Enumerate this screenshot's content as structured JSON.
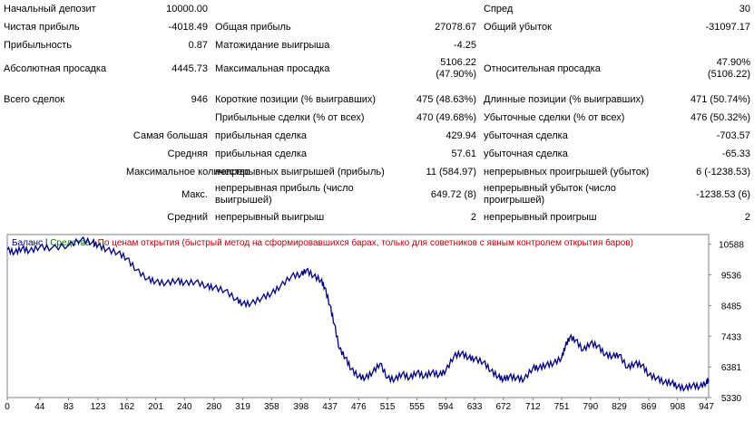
{
  "report": {
    "rows": [
      {
        "h": 20,
        "cells": [
          {
            "t": "Начальный депозит"
          },
          {
            "t": "10000.00",
            "num": true
          },
          {
            "t": ""
          },
          {
            "t": "",
            "num": true
          },
          {
            "t": "Спред"
          },
          {
            "t": "30",
            "num": true
          }
        ]
      },
      {
        "h": 20,
        "cells": [
          {
            "t": "Чистая прибыль"
          },
          {
            "t": "-4018.49",
            "num": true
          },
          {
            "t": "Общая прибыль"
          },
          {
            "t": "27078.67",
            "num": true
          },
          {
            "t": "Общий убыток"
          },
          {
            "t": "-31097.17",
            "num": true
          }
        ]
      },
      {
        "h": 20,
        "cells": [
          {
            "t": "Прибыльность"
          },
          {
            "t": "0.87",
            "num": true
          },
          {
            "t": "Матожидание выигрыша"
          },
          {
            "t": "-4.25",
            "num": true
          },
          {
            "t": ""
          },
          {
            "t": "",
            "num": true
          }
        ]
      },
      {
        "h": 32,
        "cells": [
          {
            "t": "Абсолютная просадка"
          },
          {
            "t": "4445.73",
            "num": true
          },
          {
            "t": "Максимальная просадка"
          },
          {
            "t": "5106.22\n(47.90%)",
            "num": true
          },
          {
            "t": "Относительная просадка"
          },
          {
            "t": "47.90%\n(5106.22)",
            "num": true
          }
        ]
      },
      {
        "h": 8,
        "cells": [
          {
            "t": ""
          },
          {
            "t": "",
            "num": true
          },
          {
            "t": ""
          },
          {
            "t": "",
            "num": true
          },
          {
            "t": ""
          },
          {
            "t": "",
            "num": true
          }
        ]
      },
      {
        "h": 20,
        "cells": [
          {
            "t": "Всего сделок"
          },
          {
            "t": "946",
            "num": true
          },
          {
            "t": "Короткие позиции (% выигравших)"
          },
          {
            "t": "475 (48.63%)",
            "num": true
          },
          {
            "t": "Длинные позиции (% выигравших)"
          },
          {
            "t": "471 (50.74%)",
            "num": true
          }
        ]
      },
      {
        "h": 20,
        "cells": [
          {
            "t": ""
          },
          {
            "t": "",
            "num": true
          },
          {
            "t": "Прибыльные сделки (% от всех)"
          },
          {
            "t": "470 (49.68%)",
            "num": true
          },
          {
            "t": "Убыточные сделки (% от всех)"
          },
          {
            "t": "476 (50.32%)",
            "num": true
          }
        ]
      },
      {
        "h": 20,
        "cells": [
          {
            "t": ""
          },
          {
            "t": "Самая большая",
            "num": true
          },
          {
            "t": "прибыльная сделка"
          },
          {
            "t": "429.94",
            "num": true
          },
          {
            "t": "убыточная сделка"
          },
          {
            "t": "-703.57",
            "num": true
          }
        ]
      },
      {
        "h": 20,
        "cells": [
          {
            "t": ""
          },
          {
            "t": "Средняя",
            "num": true
          },
          {
            "t": "прибыльная сделка"
          },
          {
            "t": "57.61",
            "num": true
          },
          {
            "t": "убыточная сделка"
          },
          {
            "t": "-65.33",
            "num": true
          }
        ]
      },
      {
        "h": 20,
        "cells": [
          {
            "t": ""
          },
          {
            "t": "Максимальное количество",
            "num": true
          },
          {
            "t": "непрерывных выигрышей (прибыль)"
          },
          {
            "t": "11 (584.97)",
            "num": true
          },
          {
            "t": "непрерывных проигрышей (убыток)"
          },
          {
            "t": "6 (-1238.53)",
            "num": true
          }
        ]
      },
      {
        "h": 30,
        "cells": [
          {
            "t": ""
          },
          {
            "t": "Макс.",
            "num": true
          },
          {
            "t": "непрерывная прибыль (число\nвыигрышей)"
          },
          {
            "t": "649.72 (8)",
            "num": true
          },
          {
            "t": "непрерывный убыток (число\nпроигрышей)"
          },
          {
            "t": "-1238.53 (6)",
            "num": true
          }
        ]
      },
      {
        "h": 20,
        "cells": [
          {
            "t": ""
          },
          {
            "t": "Средний",
            "num": true
          },
          {
            "t": "непрерывный выигрыш"
          },
          {
            "t": "2",
            "num": true
          },
          {
            "t": "непрерывный проигрыш"
          },
          {
            "t": "2",
            "num": true
          }
        ]
      }
    ]
  },
  "chart": {
    "legend": {
      "balance": "Баланс",
      "sep1": " | ",
      "equity": "Средства",
      "sep2": " | ",
      "note": "По ценам открытия (быстрый метод на сформировавшихся барах, только для советников с явным контролем открытия баров)"
    },
    "colors": {
      "balance": "#000080",
      "equity": "#008000",
      "note": "#c00000",
      "line": "#000080",
      "grid": "#c0c0c0",
      "frame": "#808080"
    }
  },
  "chart_data": {
    "type": "line",
    "title": "",
    "xlabel": "",
    "ylabel": "",
    "x_ticks": [
      "0",
      "44",
      "83",
      "123",
      "162",
      "201",
      "240",
      "280",
      "319",
      "358",
      "398",
      "437",
      "476",
      "515",
      "555",
      "594",
      "633",
      "672",
      "712",
      "751",
      "790",
      "829",
      "869",
      "908",
      "947"
    ],
    "y_ticks": [
      "10588",
      "9536",
      "8485",
      "7433",
      "6381",
      "5330"
    ],
    "xlim": [
      0,
      950
    ],
    "ylim": [
      5330,
      10920
    ],
    "grid": false,
    "legend_position": "top-left",
    "series": [
      {
        "name": "Баланс",
        "x": [
          0,
          10,
          20,
          30,
          44,
          60,
          83,
          100,
          115,
          123,
          135,
          150,
          162,
          175,
          190,
          201,
          215,
          230,
          240,
          255,
          270,
          280,
          295,
          310,
          319,
          330,
          345,
          358,
          370,
          385,
          398,
          405,
          415,
          425,
          430,
          437,
          443,
          450,
          458,
          466,
          476,
          485,
          495,
          505,
          515,
          525,
          535,
          545,
          555,
          565,
          575,
          585,
          594,
          605,
          615,
          625,
          633,
          645,
          655,
          665,
          672,
          680,
          690,
          700,
          712,
          720,
          730,
          740,
          751,
          756,
          762,
          770,
          780,
          790,
          800,
          810,
          820,
          829,
          840,
          850,
          860,
          869,
          880,
          890,
          900,
          908,
          918,
          928,
          938,
          947,
          950
        ],
        "y": [
          10400,
          10300,
          10450,
          10350,
          10500,
          10450,
          10550,
          10750,
          10650,
          10550,
          10400,
          10300,
          10100,
          9700,
          9400,
          9300,
          9250,
          9350,
          9250,
          9300,
          9150,
          9100,
          9000,
          8700,
          8550,
          8550,
          8750,
          8900,
          9150,
          9500,
          9550,
          9700,
          9500,
          9350,
          9100,
          8500,
          7850,
          7000,
          6700,
          6300,
          6050,
          6000,
          6200,
          6500,
          6000,
          5950,
          6150,
          6000,
          6200,
          6050,
          6200,
          6100,
          6250,
          6750,
          6850,
          6700,
          6650,
          6550,
          6250,
          6050,
          5950,
          6050,
          6000,
          5950,
          6350,
          6350,
          6450,
          6500,
          6700,
          7100,
          7400,
          7300,
          6950,
          7200,
          7100,
          6800,
          6750,
          6800,
          6350,
          6500,
          6450,
          6100,
          6000,
          5850,
          5850,
          5700,
          5650,
          5750,
          5700,
          5850,
          5950
        ]
      }
    ]
  }
}
